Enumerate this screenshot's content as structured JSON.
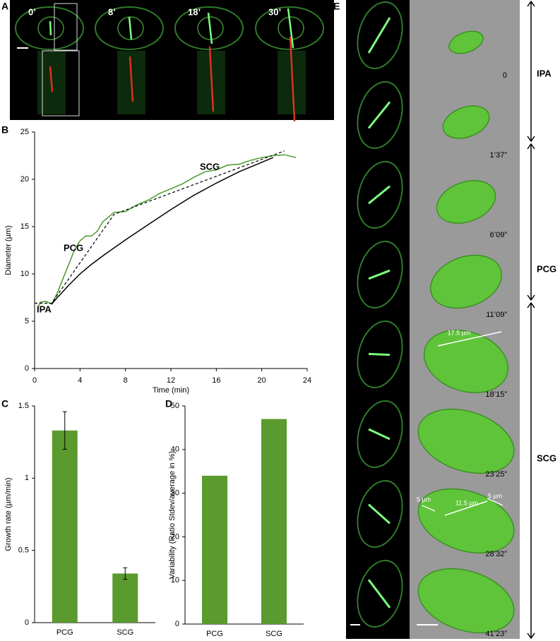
{
  "panel_a": {
    "label": "A",
    "times": [
      "0’",
      "8’",
      "18’",
      "30’"
    ]
  },
  "chart_data": [
    {
      "type": "line",
      "panel": "B",
      "xlabel": "Time (min)",
      "ylabel": "Diameter (µm)",
      "xlim": [
        0,
        24
      ],
      "xticks": [
        0,
        4,
        8,
        12,
        16,
        20,
        24
      ],
      "ylim": [
        0,
        25
      ],
      "yticks": [
        0,
        5,
        10,
        15,
        20,
        25
      ],
      "annotations": [
        "IPA",
        "PCG",
        "SCG"
      ],
      "series": [
        {
          "color": "#4a9a2a",
          "dash": false,
          "x": [
            0.3,
            0.5,
            1.0,
            1.5,
            2.0,
            2.5,
            3.0,
            3.5,
            4.0,
            4.5,
            5.0,
            5.5,
            6.0,
            6.5,
            7.0,
            8.0,
            9.0,
            10,
            11,
            12,
            13,
            14,
            15,
            16,
            17,
            18,
            19,
            20,
            21,
            22,
            23
          ],
          "values": [
            6.5,
            7.0,
            7.1,
            6.8,
            8.0,
            9.5,
            11.0,
            12.5,
            13.5,
            14.0,
            14.0,
            14.5,
            15.5,
            16.0,
            16.5,
            16.6,
            17.3,
            17.8,
            18.5,
            19.0,
            19.5,
            20.2,
            20.8,
            21.0,
            21.5,
            21.6,
            22.0,
            22.3,
            22.5,
            22.6,
            22.3
          ]
        },
        {
          "color": "#000000",
          "dash": false,
          "x": [
            1.5,
            2,
            3,
            4,
            5,
            6,
            8,
            10,
            12,
            14,
            16,
            18,
            20,
            21
          ],
          "values": [
            6.8,
            7.5,
            8.8,
            10.0,
            11.0,
            11.9,
            13.6,
            15.2,
            16.8,
            18.3,
            19.6,
            20.8,
            21.8,
            22.3
          ]
        },
        {
          "color": "#000000",
          "dash": true,
          "x": [
            0,
            1.5,
            7,
            22
          ],
          "values": [
            6.9,
            6.9,
            16.3,
            23.0
          ]
        }
      ]
    },
    {
      "type": "bar",
      "panel": "C",
      "ylabel": "Growth rate (µm/min)",
      "color": "#5b9a2e",
      "categories": [
        "PCG",
        "SCG"
      ],
      "values": [
        1.33,
        0.34
      ],
      "errors": [
        0.13,
        0.04
      ],
      "ylim": [
        0,
        1.5
      ],
      "yticks": [
        0,
        0.5,
        1,
        1.5
      ]
    },
    {
      "type": "bar",
      "panel": "D",
      "ylabel": "Variability (Ratio Stdev/average in %)",
      "color": "#5b9a2e",
      "categories": [
        "PCG",
        "SCG"
      ],
      "values": [
        34,
        47
      ],
      "ylim": [
        0,
        50
      ],
      "yticks": [
        0,
        10,
        20,
        30,
        40,
        50
      ]
    }
  ],
  "panel_e": {
    "label": "E",
    "times": [
      "0",
      "1’37”",
      "6’09”",
      "11’09”",
      "18’15”",
      "23’25”",
      "28’32”",
      "41’23”"
    ],
    "phases": [
      "IPA",
      "PCG",
      "SCG"
    ],
    "measurements": [
      "17.5 µm",
      "5 µm",
      "11.5 µm",
      "5 µm"
    ]
  }
}
